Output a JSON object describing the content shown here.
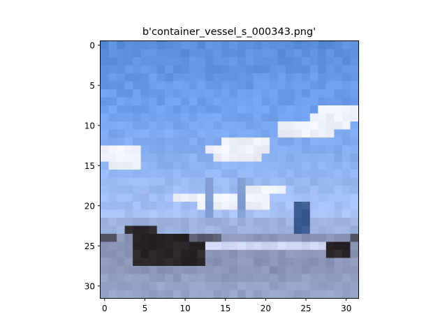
{
  "chart_data": {
    "type": "heatmap",
    "title": "b'container_vessel_s_000343.png'",
    "xlabel": "",
    "ylabel": "",
    "image_size": [
      32,
      32
    ],
    "xlim": [
      -0.5,
      31.5
    ],
    "ylim": [
      31.5,
      -0.5
    ],
    "x_ticks": [
      0,
      5,
      10,
      15,
      20,
      25,
      30
    ],
    "y_ticks": [
      0,
      5,
      10,
      15,
      20,
      25,
      30
    ],
    "grid": false,
    "legend": "none",
    "subject": "container vessel on water under a blue sky with scattered white clouds",
    "colors": {
      "sky_top": "#5b8fdc",
      "sky_mid": "#6fa0ee",
      "sky_low": "#a9c2f5",
      "cloud": "#eef0fb",
      "hull": "#2a2528",
      "deck_stripe": "#cfd6f2",
      "water": "#8a95b8",
      "bottom_band": "#93a4c6",
      "crane_blue": "#3b5a90"
    }
  }
}
